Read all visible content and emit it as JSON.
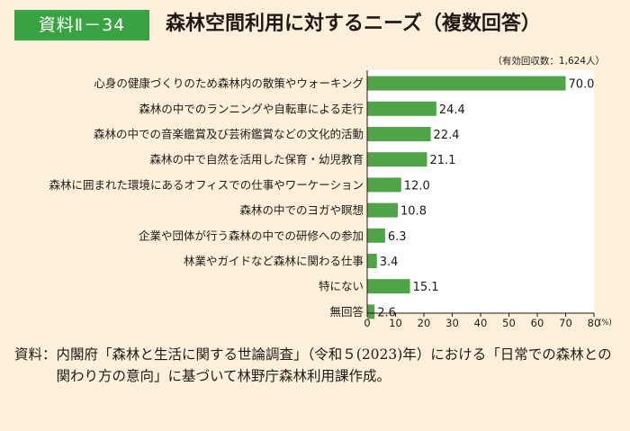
{
  "header": {
    "badge": "資料Ⅱ－34",
    "title": "森林空間利用に対するニーズ（複数回答）"
  },
  "chart_data": {
    "type": "bar",
    "orientation": "horizontal",
    "note": "（有効回収数：1,624人）",
    "categories": [
      "心身の健康づくりのため森林内の散策やウォーキング",
      "森林の中でのランニングや自転車による走行",
      "森林の中での音楽鑑賞及び芸術鑑賞などの文化的活動",
      "森林の中で自然を活用した保育・幼児教育",
      "森林に囲まれた環境にあるオフィスでの仕事やワーケーション",
      "森林の中でのヨガや瞑想",
      "企業や団体が行う森林の中での研修への参加",
      "林業やガイドなど森林に関わる仕事",
      "特にない",
      "無回答"
    ],
    "values": [
      70.0,
      24.4,
      22.4,
      21.1,
      12.0,
      10.8,
      6.3,
      3.4,
      15.1,
      2.6
    ],
    "value_labels": [
      "70.0",
      "24.4",
      "22.4",
      "21.1",
      "12.0",
      "10.8",
      "6.3",
      "3.4",
      "15.1",
      "2.6"
    ],
    "xlim": [
      0,
      80
    ],
    "xticks": [
      "0",
      "10",
      "20",
      "30",
      "40",
      "50",
      "60",
      "70",
      "80"
    ],
    "xunit": "(%)",
    "bar_color": "#4ea447",
    "grid": false
  },
  "source": {
    "label": "資料：",
    "text": "内閣府「森林と生活に関する世論調査」（令和５(2023)年）における「日常での森林との関わり方の意向」に基づいて林野庁森林利用課作成。"
  }
}
